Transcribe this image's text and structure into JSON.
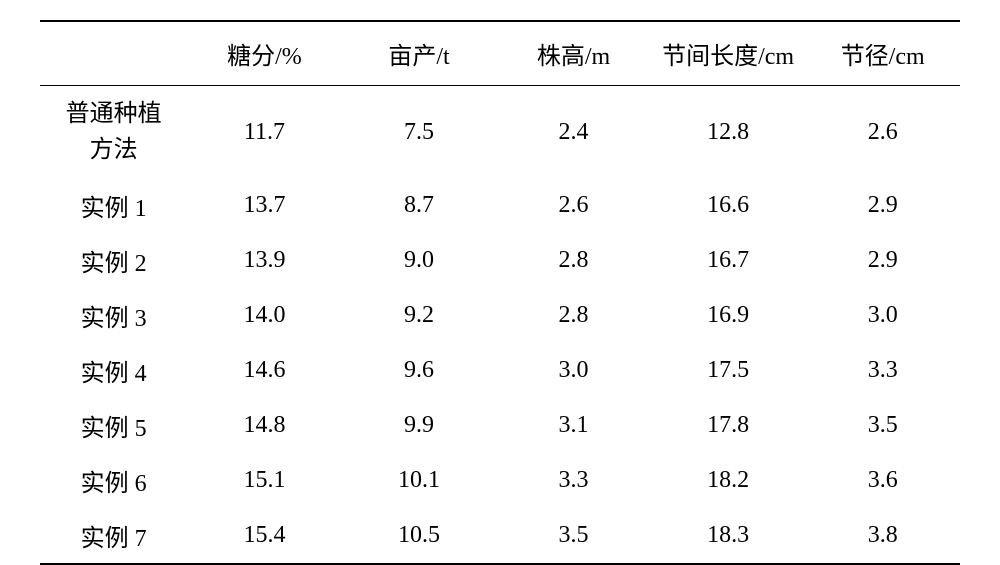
{
  "table": {
    "type": "table",
    "background_color": "#ffffff",
    "text_color": "#000000",
    "border_color": "#000000",
    "font_size_pt": 18,
    "font_family": "SimSun/Times New Roman",
    "columns": [
      {
        "key": "label",
        "header": "",
        "width_pct": 16,
        "align": "center"
      },
      {
        "key": "sugar",
        "header": "糖分/%",
        "width_pct": 16.8,
        "align": "center"
      },
      {
        "key": "yield",
        "header": "亩产/t",
        "width_pct": 16.8,
        "align": "center"
      },
      {
        "key": "height",
        "header": "株高/m",
        "width_pct": 16.8,
        "align": "center"
      },
      {
        "key": "internode",
        "header": "节间长度/cm",
        "width_pct": 16.8,
        "align": "center"
      },
      {
        "key": "diameter",
        "header": "节径/cm",
        "width_pct": 16.8,
        "align": "center"
      }
    ],
    "rows": [
      {
        "label_line1": "普通种植",
        "label_line2": "方法",
        "sugar": "11.7",
        "yield": "7.5",
        "height": "2.4",
        "internode": "12.8",
        "diameter": "2.6"
      },
      {
        "label_line1": "实例 1",
        "label_line2": "",
        "sugar": "13.7",
        "yield": "8.7",
        "height": "2.6",
        "internode": "16.6",
        "diameter": "2.9"
      },
      {
        "label_line1": "实例 2",
        "label_line2": "",
        "sugar": "13.9",
        "yield": "9.0",
        "height": "2.8",
        "internode": "16.7",
        "diameter": "2.9"
      },
      {
        "label_line1": "实例 3",
        "label_line2": "",
        "sugar": "14.0",
        "yield": "9.2",
        "height": "2.8",
        "internode": "16.9",
        "diameter": "3.0"
      },
      {
        "label_line1": "实例 4",
        "label_line2": "",
        "sugar": "14.6",
        "yield": "9.6",
        "height": "3.0",
        "internode": "17.5",
        "diameter": "3.3"
      },
      {
        "label_line1": "实例 5",
        "label_line2": "",
        "sugar": "14.8",
        "yield": "9.9",
        "height": "3.1",
        "internode": "17.8",
        "diameter": "3.5"
      },
      {
        "label_line1": "实例 6",
        "label_line2": "",
        "sugar": "15.1",
        "yield": "10.1",
        "height": "3.3",
        "internode": "18.2",
        "diameter": "3.6"
      },
      {
        "label_line1": "实例 7",
        "label_line2": "",
        "sugar": "15.4",
        "yield": "10.5",
        "height": "3.5",
        "internode": "18.3",
        "diameter": "3.8"
      }
    ]
  }
}
